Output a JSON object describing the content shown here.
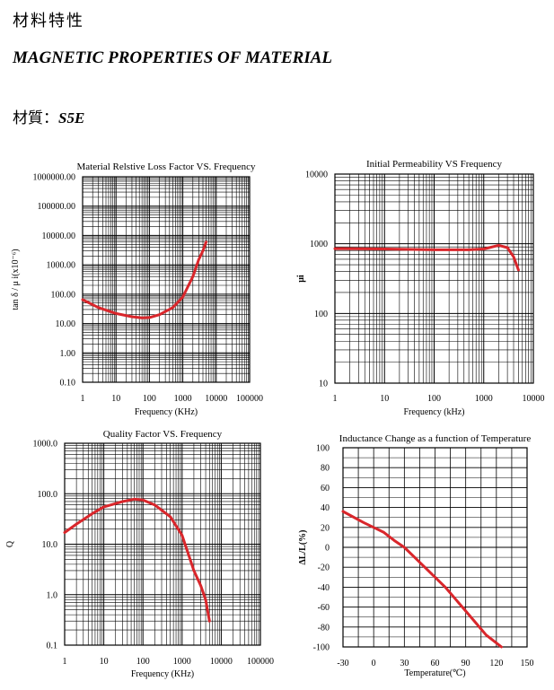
{
  "header": {
    "title_cn": "材料特性",
    "title_en": "MAGNETIC PROPERTIES OF MATERIAL",
    "material_label": "材質：",
    "material_value": "S5E"
  },
  "colors": {
    "curve": "#d9262b",
    "grid": "#000000",
    "background": "#ffffff"
  },
  "chart_data": [
    {
      "type": "line",
      "title": "Material Relstive Loss Factor VS. Frequency",
      "xlabel": "Frequency (KHz)",
      "ylabel": "tan δ / μ i(x10⁻⁶)",
      "xscale": "log",
      "yscale": "log",
      "xlim": [
        1,
        100000
      ],
      "ylim": [
        0.1,
        1000000
      ],
      "xticks": [
        "1",
        "10",
        "100",
        "1000",
        "10000",
        "100000"
      ],
      "yticks": [
        "0.10",
        "1.00",
        "10.00",
        "100.00",
        "1000.00",
        "10000.00",
        "100000.00",
        "1000000.00"
      ],
      "grid": true,
      "series": [
        {
          "x": [
            1,
            3,
            10,
            30,
            60,
            100,
            200,
            500,
            1000,
            2000,
            3000,
            4000,
            5000
          ],
          "y": [
            65,
            35,
            22,
            17,
            15.5,
            16,
            20,
            35,
            80,
            400,
            1500,
            3000,
            6000
          ]
        }
      ]
    },
    {
      "type": "line",
      "title": "Initial Permeability VS Frequency",
      "xlabel": "Frequency (kHz)",
      "ylabel": "μi",
      "xscale": "log",
      "yscale": "log",
      "xlim": [
        1,
        10000
      ],
      "ylim": [
        10,
        10000
      ],
      "xticks": [
        "1",
        "10",
        "100",
        "1000",
        "10000"
      ],
      "yticks": [
        "10",
        "100",
        "1000",
        "10000"
      ],
      "grid": true,
      "series": [
        {
          "x": [
            1,
            10,
            100,
            500,
            1000,
            2000,
            3000,
            4000,
            5000
          ],
          "y": [
            850,
            840,
            820,
            820,
            840,
            950,
            880,
            650,
            420
          ]
        }
      ]
    },
    {
      "type": "line",
      "title": "Quality Factor  VS. Frequency",
      "xlabel": "Frequency (KHz)",
      "ylabel": "Q",
      "xscale": "log",
      "yscale": "log",
      "xlim": [
        1,
        100000
      ],
      "ylim": [
        0.1,
        1000
      ],
      "xticks": [
        "1",
        "10",
        "100",
        "1000",
        "10000",
        "100000"
      ],
      "yticks": [
        "0.1",
        "1.0",
        "10.0",
        "100.0",
        "1000.0"
      ],
      "grid": true,
      "series": [
        {
          "x": [
            1,
            2,
            5,
            10,
            30,
            60,
            100,
            200,
            500,
            1000,
            2000,
            3000,
            4000,
            5000
          ],
          "y": [
            17,
            25,
            40,
            55,
            70,
            78,
            75,
            60,
            35,
            15,
            3,
            1.5,
            0.8,
            0.3
          ]
        }
      ]
    },
    {
      "type": "line",
      "title": "Inductance Change as a function of Temperature",
      "xlabel": "Temperature(℃)",
      "ylabel": "ΔL/L(%)",
      "xlim": [
        -30,
        150
      ],
      "ylim": [
        -100,
        100
      ],
      "xticks": [
        "-30",
        "0",
        "30",
        "60",
        "90",
        "120",
        "150"
      ],
      "yticks": [
        "100",
        "80",
        "60",
        "40",
        "20",
        "0",
        "-20",
        "-40",
        "-60",
        "-80",
        "-100"
      ],
      "grid": true,
      "series": [
        {
          "x": [
            -30,
            -10,
            0,
            10,
            20,
            30,
            40,
            50,
            60,
            70,
            80,
            90,
            100,
            110,
            120,
            125
          ],
          "y": [
            36,
            25,
            20,
            15,
            7,
            0,
            -10,
            -20,
            -30,
            -40,
            -52,
            -64,
            -76,
            -88,
            -96,
            -100
          ]
        }
      ]
    }
  ]
}
